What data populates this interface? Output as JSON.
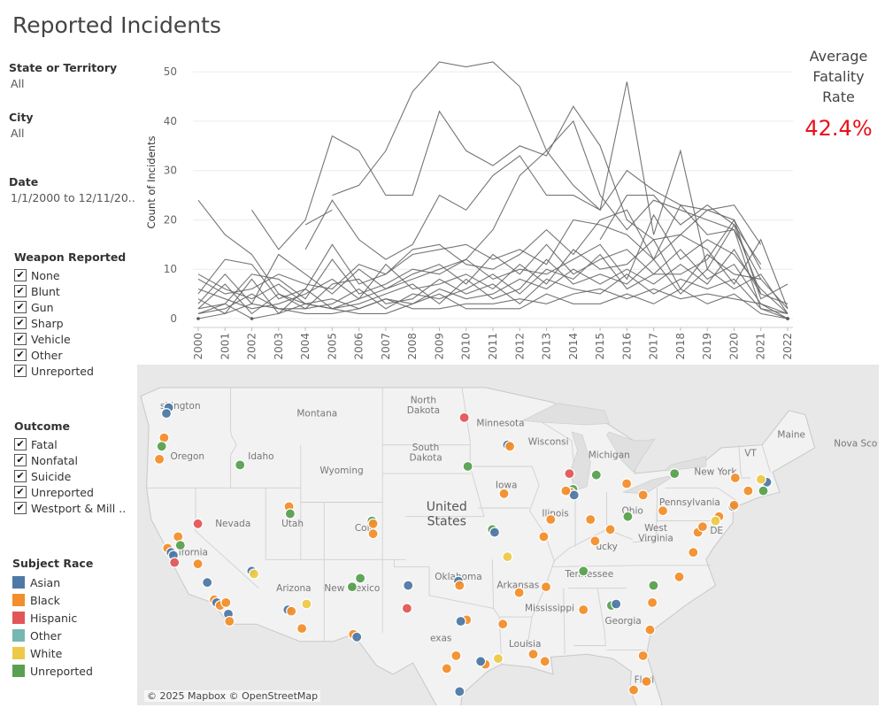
{
  "dashboard": {
    "title": "Reported Incidents"
  },
  "filters": {
    "state": {
      "label": "State or Territory",
      "value": "All"
    },
    "city": {
      "label": "City",
      "value": "All"
    },
    "date": {
      "label": "Date",
      "value": "1/1/2000 to 12/11/20.."
    }
  },
  "weapon_legend": {
    "title": "Weapon Reported",
    "items": [
      "None",
      "Blunt",
      "Gun",
      "Sharp",
      "Vehicle",
      "Other",
      "Unreported"
    ]
  },
  "outcome_legend": {
    "title": "Outcome",
    "items": [
      "Fatal",
      "Nonfatal",
      "Suicide",
      "Unreported",
      "Westport & Mill .."
    ]
  },
  "race_legend": {
    "title": "Subject Race",
    "items": [
      {
        "label": "Asian",
        "color": "#4e79a7"
      },
      {
        "label": "Black",
        "color": "#f28e2b"
      },
      {
        "label": "Hispanic",
        "color": "#e15759"
      },
      {
        "label": "Other",
        "color": "#76b7b2"
      },
      {
        "label": "White",
        "color": "#edc948"
      },
      {
        "label": "Unreported",
        "color": "#59a14f"
      }
    ]
  },
  "kpi": {
    "label_line1": "Average",
    "label_line2": "Fatality",
    "label_line3": "Rate",
    "value": "42.4%"
  },
  "chart_data": {
    "type": "line",
    "ylabel": "Count of Incidents",
    "ylim": [
      0,
      52
    ],
    "yticks": [
      0,
      10,
      20,
      30,
      40,
      50
    ],
    "x": [
      2000,
      2001,
      2002,
      2003,
      2004,
      2005,
      2006,
      2007,
      2008,
      2009,
      2010,
      2011,
      2012,
      2013,
      2014,
      2015,
      2016,
      2017,
      2018,
      2019,
      2020,
      2021,
      2022
    ],
    "x_tick_labels": [
      "2000",
      "2001",
      "2002",
      "2003",
      "2004",
      "2005",
      "2006",
      "2007",
      "2008",
      "2009",
      "2010",
      "2011",
      "2012",
      "2013",
      "2014",
      "2015",
      "2016",
      "2017",
      "2018",
      "2019",
      "2020",
      "2021",
      "2022"
    ],
    "grid": true,
    "line_color": "#666666",
    "series": [
      {
        "values": [
          null,
          null,
          null,
          null,
          null,
          25,
          27,
          34,
          46,
          52,
          51,
          52,
          47,
          34,
          40,
          25,
          18,
          24,
          22,
          20,
          18,
          8,
          null
        ]
      },
      {
        "values": [
          null,
          null,
          22,
          14,
          20,
          37,
          34,
          25,
          25,
          42,
          34,
          31,
          35,
          33,
          43,
          35,
          20,
          16,
          17,
          22,
          20,
          10,
          null
        ]
      },
      {
        "values": [
          24,
          17,
          13,
          5,
          3,
          2,
          4,
          6,
          8,
          10,
          12,
          18,
          29,
          34,
          27,
          22,
          48,
          17,
          34,
          10,
          19,
          5,
          null
        ]
      },
      {
        "values": [
          null,
          null,
          null,
          null,
          14,
          24,
          16,
          12,
          15,
          25,
          22,
          29,
          33,
          25,
          25,
          22,
          30,
          26,
          23,
          22,
          23,
          15,
          null
        ]
      },
      {
        "values": [
          null,
          null,
          null,
          null,
          19,
          22,
          null,
          null,
          null,
          null,
          null,
          null,
          null,
          null,
          null,
          16,
          25,
          25,
          19,
          23,
          19,
          11,
          null
        ]
      },
      {
        "values": [
          5,
          12,
          11,
          4,
          6,
          15,
          7,
          9,
          14,
          15,
          11,
          10,
          13,
          18,
          13,
          20,
          22,
          12,
          23,
          17,
          18,
          2,
          1
        ]
      },
      {
        "values": [
          8,
          5,
          6,
          9,
          7,
          6,
          11,
          9,
          13,
          14,
          15,
          12,
          14,
          11,
          20,
          19,
          17,
          12,
          17,
          14,
          7,
          16,
          2
        ]
      },
      {
        "values": [
          2,
          3,
          9,
          8,
          4,
          12,
          5,
          7,
          10,
          9,
          12,
          8,
          10,
          9,
          12,
          15,
          8,
          21,
          12,
          16,
          13,
          6,
          1
        ]
      },
      {
        "values": [
          3,
          9,
          3,
          13,
          9,
          5,
          10,
          6,
          9,
          11,
          7,
          13,
          9,
          15,
          9,
          12,
          14,
          9,
          9,
          12,
          20,
          4,
          7
        ]
      },
      {
        "values": [
          6,
          4,
          2,
          3,
          5,
          8,
          4,
          11,
          6,
          7,
          9,
          6,
          11,
          7,
          14,
          10,
          11,
          16,
          6,
          13,
          9,
          8,
          2
        ]
      },
      {
        "values": [
          1,
          2,
          5,
          2,
          2,
          3,
          6,
          2,
          5,
          4,
          6,
          9,
          5,
          10,
          8,
          13,
          6,
          9,
          14,
          8,
          11,
          3,
          0
        ]
      },
      {
        "values": [
          9,
          6,
          4,
          7,
          3,
          4,
          2,
          4,
          3,
          6,
          4,
          5,
          8,
          6,
          10,
          7,
          10,
          7,
          11,
          7,
          14,
          5,
          3
        ]
      },
      {
        "values": [
          4,
          1,
          8,
          1,
          6,
          2,
          3,
          5,
          7,
          3,
          8,
          4,
          6,
          12,
          7,
          9,
          7,
          12,
          5,
          10,
          6,
          9,
          1
        ]
      },
      {
        "values": [
          2,
          7,
          1,
          5,
          2,
          7,
          8,
          3,
          4,
          8,
          5,
          7,
          3,
          8,
          6,
          5,
          9,
          5,
          8,
          6,
          8,
          2,
          0
        ]
      },
      {
        "values": [
          0,
          1,
          3,
          2,
          1,
          1,
          2,
          4,
          2,
          2,
          3,
          3,
          4,
          3,
          5,
          6,
          4,
          6,
          4,
          5,
          4,
          3,
          1
        ]
      },
      {
        "values": [
          1,
          3,
          0,
          1,
          3,
          2,
          1,
          1,
          3,
          5,
          2,
          2,
          2,
          5,
          3,
          3,
          5,
          3,
          6,
          3,
          5,
          1,
          0
        ]
      }
    ]
  },
  "map": {
    "attribution": "© 2025 Mapbox © OpenStreetMap",
    "labels": {
      "washington": "shington",
      "montana": "Montana",
      "north_dakota_1": "North",
      "north_dakota_2": "Dakota",
      "minnesota": "Minnesota",
      "wisconsin": "Wisconsi",
      "michigan": "Michigan",
      "maine": "Maine",
      "nova_scotia": "Nova Sco",
      "oregon": "Oregon",
      "idaho": "Idaho",
      "south_dakota_1": "South",
      "south_dakota_2": "Dakota",
      "wyoming": "Wyoming",
      "vermont": "VT",
      "new_york": "New York",
      "iowa": "Iowa",
      "united_states_1": "United",
      "united_states_2": "States",
      "pennsylvania": "Pennsylvania",
      "nevada": "Nevada",
      "utah": "Utah",
      "colorado": "Colo",
      "illinois": "Ilinois",
      "ohio": "Ohio",
      "west_virginia_1": "West",
      "west_virginia_2": "Virginia",
      "delaware": "DE",
      "california": "ifornia",
      "kentucky": "ucky",
      "oklahoma": "Oklahoma",
      "tennessee": "Tennessee",
      "arkansas": "Arkansas",
      "arizona": "Arizona",
      "new_mexico": "New Mexico",
      "mississippi": "Mississippi",
      "georgia": "Georgia",
      "texas": "exas",
      "louisiana": "Louisia",
      "florida": "Flori"
    },
    "points": [
      {
        "lon": -122.3,
        "lat": 47.6,
        "race": "Asian"
      },
      {
        "lon": -122.5,
        "lat": 47.2,
        "race": "Asian"
      },
      {
        "lon": -122.7,
        "lat": 45.5,
        "race": "Black"
      },
      {
        "lon": -122.9,
        "lat": 44.9,
        "race": "Unreported"
      },
      {
        "lon": -123.1,
        "lat": 44.0,
        "race": "Black"
      },
      {
        "lon": -116.2,
        "lat": 43.6,
        "race": "Unreported"
      },
      {
        "lon": -122.4,
        "lat": 37.8,
        "race": "Black"
      },
      {
        "lon": -122.1,
        "lat": 37.5,
        "race": "Asian"
      },
      {
        "lon": -121.9,
        "lat": 37.3,
        "race": "Asian"
      },
      {
        "lon": -121.5,
        "lat": 38.6,
        "race": "Black"
      },
      {
        "lon": -121.3,
        "lat": 38.0,
        "race": "Unreported"
      },
      {
        "lon": -121.8,
        "lat": 36.8,
        "race": "Hispanic"
      },
      {
        "lon": -119.8,
        "lat": 36.7,
        "race": "Black"
      },
      {
        "lon": -119.8,
        "lat": 39.5,
        "race": "Hispanic"
      },
      {
        "lon": -119.0,
        "lat": 35.4,
        "race": "Asian"
      },
      {
        "lon": -118.4,
        "lat": 34.2,
        "race": "Black"
      },
      {
        "lon": -118.2,
        "lat": 34.0,
        "race": "Asian"
      },
      {
        "lon": -117.9,
        "lat": 33.8,
        "race": "Black"
      },
      {
        "lon": -117.4,
        "lat": 34.0,
        "race": "Black"
      },
      {
        "lon": -117.2,
        "lat": 33.2,
        "race": "Asian"
      },
      {
        "lon": -117.1,
        "lat": 32.7,
        "race": "Black"
      },
      {
        "lon": -115.2,
        "lat": 36.2,
        "race": "Asian"
      },
      {
        "lon": -115.0,
        "lat": 36.0,
        "race": "White"
      },
      {
        "lon": -112.0,
        "lat": 40.7,
        "race": "Black"
      },
      {
        "lon": -111.9,
        "lat": 40.2,
        "race": "Unreported"
      },
      {
        "lon": -112.1,
        "lat": 33.5,
        "race": "Asian"
      },
      {
        "lon": -111.8,
        "lat": 33.4,
        "race": "Black"
      },
      {
        "lon": -110.9,
        "lat": 32.2,
        "race": "Black"
      },
      {
        "lon": -110.5,
        "lat": 33.9,
        "race": "White"
      },
      {
        "lon": -106.6,
        "lat": 35.1,
        "race": "Unreported"
      },
      {
        "lon": -105.9,
        "lat": 35.7,
        "race": "Unreported"
      },
      {
        "lon": -104.9,
        "lat": 39.7,
        "race": "Unreported"
      },
      {
        "lon": -104.8,
        "lat": 39.5,
        "race": "Black"
      },
      {
        "lon": -104.8,
        "lat": 38.8,
        "race": "Black"
      },
      {
        "lon": -106.5,
        "lat": 31.8,
        "race": "Black"
      },
      {
        "lon": -106.2,
        "lat": 31.6,
        "race": "Asian"
      },
      {
        "lon": -101.8,
        "lat": 35.2,
        "race": "Asian"
      },
      {
        "lon": -101.9,
        "lat": 33.6,
        "race": "Hispanic"
      },
      {
        "lon": -97.5,
        "lat": 35.5,
        "race": "Asian"
      },
      {
        "lon": -97.4,
        "lat": 35.2,
        "race": "Black"
      },
      {
        "lon": -96.8,
        "lat": 32.8,
        "race": "Black"
      },
      {
        "lon": -97.3,
        "lat": 32.7,
        "race": "Asian"
      },
      {
        "lon": -95.4,
        "lat": 29.8,
        "race": "Asian"
      },
      {
        "lon": -95.2,
        "lat": 29.7,
        "race": "Black"
      },
      {
        "lon": -95.6,
        "lat": 29.9,
        "race": "Asian"
      },
      {
        "lon": -97.7,
        "lat": 30.3,
        "race": "Black"
      },
      {
        "lon": -98.5,
        "lat": 29.4,
        "race": "Black"
      },
      {
        "lon": -97.4,
        "lat": 27.8,
        "race": "Asian"
      },
      {
        "lon": -94.1,
        "lat": 30.1,
        "race": "White"
      },
      {
        "lon": -93.7,
        "lat": 32.5,
        "race": "Black"
      },
      {
        "lon": -91.1,
        "lat": 30.4,
        "race": "Black"
      },
      {
        "lon": -90.1,
        "lat": 29.9,
        "race": "Black"
      },
      {
        "lon": -92.3,
        "lat": 34.7,
        "race": "Black"
      },
      {
        "lon": -94.6,
        "lat": 39.1,
        "race": "Unreported"
      },
      {
        "lon": -94.4,
        "lat": 38.9,
        "race": "Asian"
      },
      {
        "lon": -93.3,
        "lat": 37.2,
        "race": "White"
      },
      {
        "lon": -90.2,
        "lat": 38.6,
        "race": "Black"
      },
      {
        "lon": -93.6,
        "lat": 41.6,
        "race": "Black"
      },
      {
        "lon": -96.7,
        "lat": 43.5,
        "race": "Unreported"
      },
      {
        "lon": -97.0,
        "lat": 46.9,
        "race": "Hispanic"
      },
      {
        "lon": -93.3,
        "lat": 45.0,
        "race": "Asian"
      },
      {
        "lon": -93.1,
        "lat": 44.9,
        "race": "Black"
      },
      {
        "lon": -88.0,
        "lat": 43.0,
        "race": "Hispanic"
      },
      {
        "lon": -87.7,
        "lat": 41.9,
        "race": "Unreported"
      },
      {
        "lon": -87.9,
        "lat": 41.7,
        "race": "Black"
      },
      {
        "lon": -87.6,
        "lat": 41.5,
        "race": "Asian"
      },
      {
        "lon": -88.3,
        "lat": 41.8,
        "race": "Black"
      },
      {
        "lon": -89.6,
        "lat": 39.8,
        "race": "Black"
      },
      {
        "lon": -86.2,
        "lat": 39.8,
        "race": "Black"
      },
      {
        "lon": -85.8,
        "lat": 38.3,
        "race": "Black"
      },
      {
        "lon": -84.5,
        "lat": 39.1,
        "race": "Black"
      },
      {
        "lon": -83.0,
        "lat": 40.0,
        "race": "Unreported"
      },
      {
        "lon": -83.1,
        "lat": 42.3,
        "race": "Black"
      },
      {
        "lon": -85.7,
        "lat": 42.9,
        "race": "Unreported"
      },
      {
        "lon": -86.8,
        "lat": 36.2,
        "race": "Unreported"
      },
      {
        "lon": -84.4,
        "lat": 33.8,
        "race": "Unreported"
      },
      {
        "lon": -84.0,
        "lat": 33.9,
        "race": "Asian"
      },
      {
        "lon": -81.7,
        "lat": 41.5,
        "race": "Black"
      },
      {
        "lon": -80.0,
        "lat": 40.4,
        "race": "Black"
      },
      {
        "lon": -79.0,
        "lat": 43.0,
        "race": "Unreported"
      },
      {
        "lon": -78.6,
        "lat": 35.8,
        "race": "Black"
      },
      {
        "lon": -80.8,
        "lat": 35.2,
        "race": "Unreported"
      },
      {
        "lon": -80.9,
        "lat": 34.0,
        "race": "Black"
      },
      {
        "lon": -77.4,
        "lat": 37.5,
        "race": "Black"
      },
      {
        "lon": -77.0,
        "lat": 38.9,
        "race": "Black"
      },
      {
        "lon": -76.6,
        "lat": 39.3,
        "race": "Black"
      },
      {
        "lon": -75.2,
        "lat": 40.0,
        "race": "Black"
      },
      {
        "lon": -74.0,
        "lat": 40.7,
        "race": "Asian"
      },
      {
        "lon": -73.9,
        "lat": 40.8,
        "race": "Black"
      },
      {
        "lon": -72.7,
        "lat": 41.8,
        "race": "Black"
      },
      {
        "lon": -71.1,
        "lat": 42.4,
        "race": "Asian"
      },
      {
        "lon": -71.4,
        "lat": 41.8,
        "race": "Unreported"
      },
      {
        "lon": -71.6,
        "lat": 42.6,
        "race": "White"
      },
      {
        "lon": -73.8,
        "lat": 42.7,
        "race": "Black"
      },
      {
        "lon": -75.5,
        "lat": 39.7,
        "race": "White"
      },
      {
        "lon": -81.4,
        "lat": 28.5,
        "race": "Black"
      },
      {
        "lon": -82.5,
        "lat": 27.9,
        "race": "Black"
      },
      {
        "lon": -80.2,
        "lat": 25.8,
        "race": "Asian"
      },
      {
        "lon": -81.7,
        "lat": 30.3,
        "race": "Black"
      },
      {
        "lon": -81.1,
        "lat": 32.1,
        "race": "Black"
      },
      {
        "lon": -90.0,
        "lat": 35.1,
        "race": "Black"
      },
      {
        "lon": -86.8,
        "lat": 33.5,
        "race": "Black"
      }
    ]
  }
}
